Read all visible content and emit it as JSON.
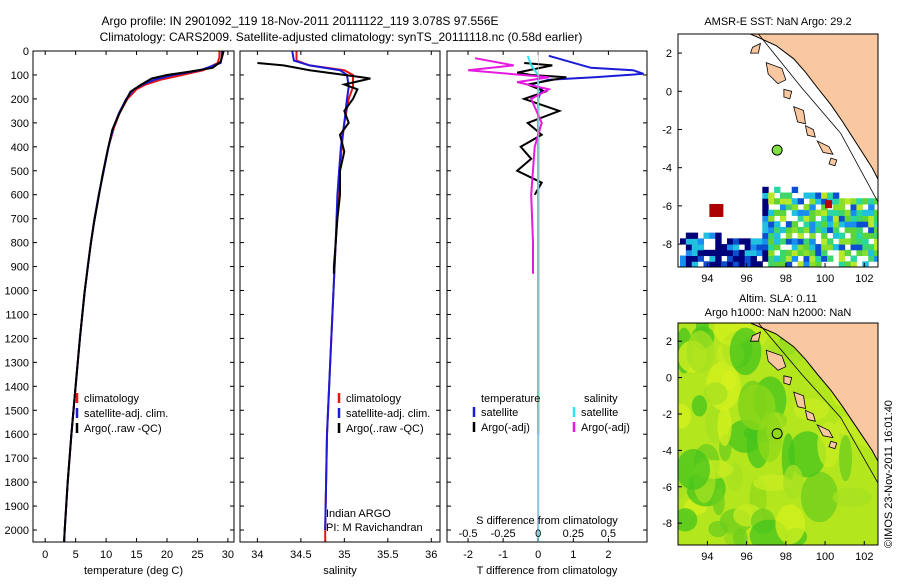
{
  "titles": {
    "line1": "Argo profile: IN 2901092_119 18-Nov-2011 20111122_119 3.078S 97.556E",
    "line2": "Climatology: CARS2009. Satellite-adjusted climatology: synTS_20111118.nc (0.58d earlier)"
  },
  "colors": {
    "clim": "#e8150f",
    "sat": "#1a1ad8",
    "argo": "#000000",
    "sat_s": "#2fe6f0",
    "argo_s": "#e619e0",
    "land": "#f9c8a0"
  },
  "chart_data": [
    {
      "type": "line",
      "id": "temperature",
      "xlabel": "temperature (deg C)",
      "ylabel": "",
      "xlim": [
        -2,
        31
      ],
      "ylim": [
        2050,
        0
      ],
      "xticks": [
        0,
        5,
        10,
        15,
        20,
        25,
        30
      ],
      "yticks": [
        0,
        100,
        200,
        300,
        400,
        500,
        600,
        700,
        800,
        900,
        1000,
        1100,
        1200,
        1300,
        1400,
        1500,
        1600,
        1700,
        1800,
        1900,
        2000
      ],
      "legend": [
        "climatology",
        "satellite-adj. clim.",
        "Argo(..raw -QC)"
      ],
      "series": [
        {
          "name": "climatology",
          "color": "clim",
          "points": [
            [
              28.6,
              0
            ],
            [
              28.6,
              25
            ],
            [
              28.3,
              50
            ],
            [
              26.0,
              80
            ],
            [
              22.5,
              100
            ],
            [
              19.0,
              120
            ],
            [
              16.5,
              140
            ],
            [
              15.0,
              160
            ],
            [
              13.5,
              200
            ],
            [
              12.2,
              260
            ],
            [
              11.3,
              320
            ],
            [
              10.4,
              400
            ],
            [
              9.6,
              500
            ],
            [
              8.8,
              600
            ],
            [
              8.1,
              700
            ],
            [
              7.5,
              800
            ],
            [
              7.0,
              900
            ],
            [
              6.5,
              1000
            ],
            [
              5.7,
              1200
            ],
            [
              5.0,
              1400
            ],
            [
              4.3,
              1600
            ],
            [
              3.7,
              1800
            ],
            [
              3.2,
              2000
            ],
            [
              3.1,
              2050
            ]
          ]
        },
        {
          "name": "satellite-adj. clim.",
          "color": "sat",
          "points": [
            [
              29.0,
              0
            ],
            [
              29.0,
              25
            ],
            [
              28.8,
              50
            ],
            [
              25.5,
              80
            ],
            [
              21.0,
              100
            ],
            [
              18.0,
              120
            ],
            [
              16.0,
              140
            ],
            [
              14.6,
              160
            ],
            [
              13.3,
              200
            ],
            [
              12.1,
              260
            ],
            [
              11.2,
              320
            ],
            [
              10.4,
              400
            ],
            [
              9.6,
              500
            ],
            [
              8.8,
              600
            ],
            [
              8.1,
              700
            ],
            [
              7.5,
              800
            ],
            [
              7.0,
              900
            ],
            [
              6.5,
              1000
            ],
            [
              5.7,
              1200
            ],
            [
              5.0,
              1400
            ],
            [
              4.3,
              1600
            ],
            [
              3.7,
              1800
            ],
            [
              3.2,
              2000
            ],
            [
              3.1,
              2050
            ]
          ]
        },
        {
          "name": "Argo(..raw -QC)",
          "color": "argo",
          "points": [
            [
              29.3,
              0
            ],
            [
              29.1,
              20
            ],
            [
              28.8,
              45
            ],
            [
              27.5,
              70
            ],
            [
              24.0,
              85
            ],
            [
              20.0,
              100
            ],
            [
              17.5,
              115
            ],
            [
              15.8,
              140
            ],
            [
              14.0,
              170
            ],
            [
              13.8,
              180
            ],
            [
              12.8,
              230
            ],
            [
              12.0,
              270
            ],
            [
              11.0,
              330
            ],
            [
              10.2,
              420
            ],
            [
              9.4,
              520
            ],
            [
              8.7,
              620
            ],
            [
              8.0,
              720
            ],
            [
              7.4,
              820
            ],
            [
              6.9,
              920
            ],
            [
              6.4,
              1020
            ],
            [
              5.7,
              1200
            ],
            [
              5.0,
              1400
            ],
            [
              4.3,
              1600
            ],
            [
              3.7,
              1800
            ],
            [
              3.2,
              2000
            ],
            [
              3.1,
              2050
            ]
          ]
        }
      ]
    },
    {
      "type": "line",
      "id": "salinity",
      "xlabel": "salinity",
      "xlim": [
        33.8,
        36.1
      ],
      "ylim": [
        2050,
        0
      ],
      "xticks": [
        34,
        34.5,
        35,
        35.5,
        36
      ],
      "legend": [
        "climatology",
        "satellite-adj. clim.",
        "Argo(..raw -QC)"
      ],
      "annotation": [
        "Indian ARGO",
        "PI: M Ravichandran"
      ],
      "series": [
        {
          "name": "climatology",
          "color": "clim",
          "points": [
            [
              34.45,
              0
            ],
            [
              34.45,
              40
            ],
            [
              34.6,
              60
            ],
            [
              35.0,
              80
            ],
            [
              35.1,
              100
            ],
            [
              35.1,
              150
            ],
            [
              35.05,
              200
            ],
            [
              35.0,
              300
            ],
            [
              34.97,
              400
            ],
            [
              34.95,
              500
            ],
            [
              34.93,
              600
            ],
            [
              34.9,
              800
            ],
            [
              34.85,
              1200
            ],
            [
              34.8,
              1600
            ],
            [
              34.78,
              2000
            ],
            [
              34.78,
              2050
            ]
          ]
        },
        {
          "name": "satellite-adj. clim.",
          "color": "sat",
          "points": [
            [
              34.4,
              0
            ],
            [
              34.42,
              40
            ],
            [
              34.6,
              60
            ],
            [
              34.95,
              80
            ],
            [
              35.03,
              100
            ],
            [
              35.05,
              150
            ],
            [
              35.03,
              200
            ],
            [
              35.0,
              300
            ],
            [
              34.96,
              400
            ],
            [
              34.94,
              500
            ],
            [
              34.92,
              600
            ],
            [
              34.9,
              800
            ],
            [
              34.85,
              1200
            ],
            [
              34.8,
              1600
            ],
            [
              34.78,
              2000
            ]
          ]
        },
        {
          "name": "Argo(..raw -QC)",
          "color": "argo",
          "points": [
            [
              34.0,
              50
            ],
            [
              34.3,
              60
            ],
            [
              34.6,
              80
            ],
            [
              35.2,
              110
            ],
            [
              35.3,
              115
            ],
            [
              35.0,
              140
            ],
            [
              35.15,
              160
            ],
            [
              35.1,
              200
            ],
            [
              35.0,
              250
            ],
            [
              35.05,
              300
            ],
            [
              34.95,
              350
            ],
            [
              35.0,
              420
            ],
            [
              34.95,
              500
            ],
            [
              34.95,
              600
            ],
            [
              34.92,
              700
            ],
            [
              34.9,
              800
            ],
            [
              34.88,
              900
            ],
            [
              34.88,
              930
            ]
          ]
        }
      ]
    },
    {
      "type": "line",
      "id": "difference",
      "xlabel": "T difference from climatology",
      "xlabel_top": "S difference from climatology",
      "xlim": [
        -2.6,
        3.1
      ],
      "ylim": [
        2050,
        0
      ],
      "xticks": [
        -2,
        -1,
        0,
        1,
        2
      ],
      "xticks_top_labels": [
        "-0.5",
        "-0.25",
        "0",
        "0.25",
        "0.5"
      ],
      "xticks_top_pos": [
        -2,
        -1,
        0,
        1,
        2
      ],
      "legend_groups": [
        {
          "title": "temperature",
          "items": [
            "satellite",
            "Argo(-adj)"
          ]
        },
        {
          "title": "salinity",
          "items": [
            "satellite",
            "Argo(-adj)"
          ]
        }
      ],
      "series": [
        {
          "name": "temperature satellite",
          "color": "sat",
          "points": [
            [
              0.3,
              20
            ],
            [
              1.5,
              70
            ],
            [
              2.7,
              80
            ],
            [
              3.0,
              95
            ],
            [
              1.6,
              110
            ],
            [
              0.3,
              120
            ],
            [
              -0.2,
              140
            ],
            [
              0.1,
              160
            ],
            [
              0.0,
              200
            ],
            [
              0.0,
              400
            ],
            [
              0.0,
              1200
            ],
            [
              0.0,
              1500
            ],
            [
              0.0,
              1600
            ]
          ]
        },
        {
          "name": "temperature Argo(-adj)",
          "color": "argo",
          "points": [
            [
              -0.4,
              50
            ],
            [
              0.4,
              60
            ],
            [
              -0.6,
              90
            ],
            [
              -0.2,
              100
            ],
            [
              0.8,
              110
            ],
            [
              -0.3,
              140
            ],
            [
              0.2,
              170
            ],
            [
              -0.4,
              200
            ],
            [
              0.6,
              250
            ],
            [
              -0.3,
              300
            ],
            [
              0.1,
              350
            ],
            [
              -0.5,
              400
            ],
            [
              -0.2,
              450
            ],
            [
              -0.6,
              500
            ],
            [
              0.1,
              550
            ],
            [
              -0.1,
              600
            ]
          ]
        },
        {
          "name": "salinity satellite",
          "color": "sat_s",
          "points": [
            [
              -0.3,
              20
            ],
            [
              -0.2,
              60
            ],
            [
              0.0,
              100
            ],
            [
              0.0,
              300
            ],
            [
              0.0,
              600
            ],
            [
              0.0,
              900
            ],
            [
              0.0,
              1500
            ],
            [
              0.0,
              2050
            ]
          ]
        },
        {
          "name": "salinity Argo(-adj)",
          "color": "argo_s",
          "points": [
            [
              -1.8,
              30
            ],
            [
              -0.7,
              60
            ],
            [
              -2.0,
              80
            ],
            [
              0.3,
              110
            ],
            [
              -0.6,
              130
            ],
            [
              0.3,
              160
            ],
            [
              -0.2,
              200
            ],
            [
              0.1,
              300
            ],
            [
              -0.1,
              400
            ],
            [
              -0.2,
              600
            ],
            [
              -0.15,
              800
            ],
            [
              -0.15,
              930
            ]
          ]
        }
      ]
    },
    {
      "type": "heatmap",
      "id": "sst_map",
      "title": "AMSR-E SST: NaN Argo: 29.2",
      "xticks": [
        94,
        96,
        98,
        100,
        102
      ],
      "yticks": [
        2,
        0,
        -2,
        -4,
        -6,
        -8
      ],
      "xlim": [
        92.5,
        102.7
      ],
      "ylim": [
        -9.2,
        3.0
      ],
      "argo_position": [
        97.556,
        -3.078
      ]
    },
    {
      "type": "heatmap",
      "id": "sla_map",
      "title": "Altim. SLA: 0.11",
      "subtitle": "Argo h1000: NaN h2000: NaN",
      "xticks": [
        94,
        96,
        98,
        100,
        102
      ],
      "yticks": [
        2,
        0,
        -2,
        -4,
        -6,
        -8
      ],
      "xlim": [
        92.5,
        102.7
      ],
      "ylim": [
        -9.2,
        3.0
      ],
      "argo_position": [
        97.556,
        -3.078
      ]
    }
  ],
  "credit": "©IMOS 23-Nov-2011 16:01:40"
}
